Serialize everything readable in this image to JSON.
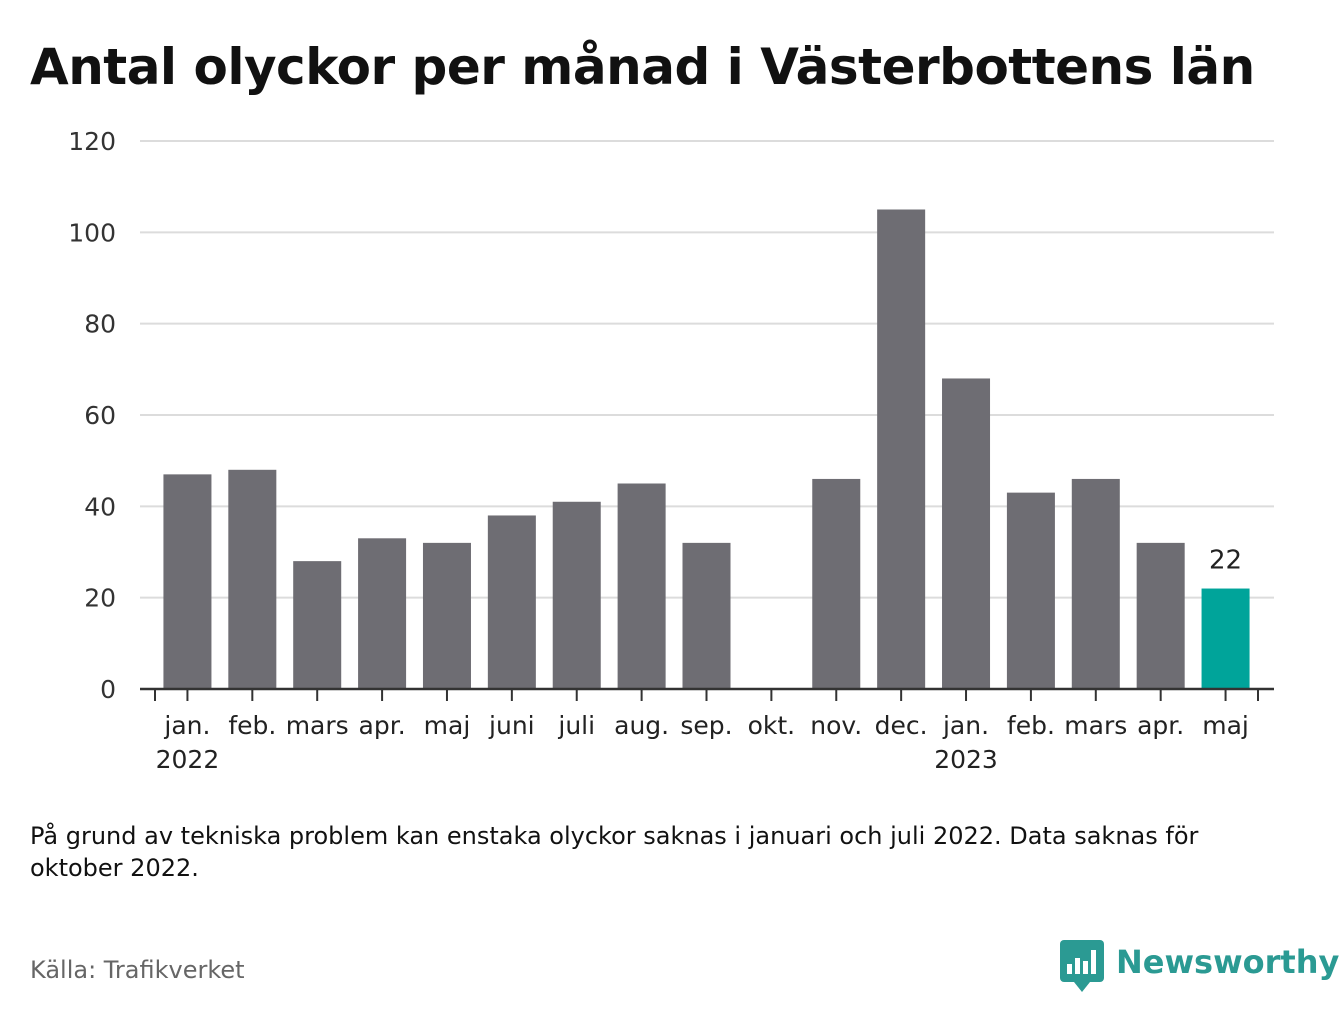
{
  "title": "Antal olyckor per månad i Västerbottens län",
  "note": "På grund av tekniska problem kan enstaka olyckor saknas i januari och juli 2022. Data saknas för oktober 2022.",
  "source": "Källa: Trafikverket",
  "brand": "Newsworthy",
  "chart_data": {
    "type": "bar",
    "title": "Antal olyckor per månad i Västerbottens län",
    "categories": [
      "jan.",
      "feb.",
      "mars",
      "apr.",
      "maj",
      "juni",
      "juli",
      "aug.",
      "sep.",
      "okt.",
      "nov.",
      "dec.",
      "jan.",
      "feb.",
      "mars",
      "apr.",
      "maj"
    ],
    "year_labels": [
      {
        "index": 0,
        "label": "2022"
      },
      {
        "index": 12,
        "label": "2023"
      }
    ],
    "values": [
      47,
      48,
      28,
      33,
      32,
      38,
      41,
      45,
      32,
      null,
      46,
      105,
      68,
      43,
      46,
      32,
      22
    ],
    "highlight_index": 16,
    "highlight_label": "22",
    "ylim": [
      0,
      120
    ],
    "yticks": [
      0,
      20,
      40,
      60,
      80,
      100,
      120
    ],
    "grid": true,
    "colors": {
      "bar": "#6e6d73",
      "highlight": "#00a49a",
      "grid": "#dcdcdc",
      "axis": "#333333"
    }
  }
}
